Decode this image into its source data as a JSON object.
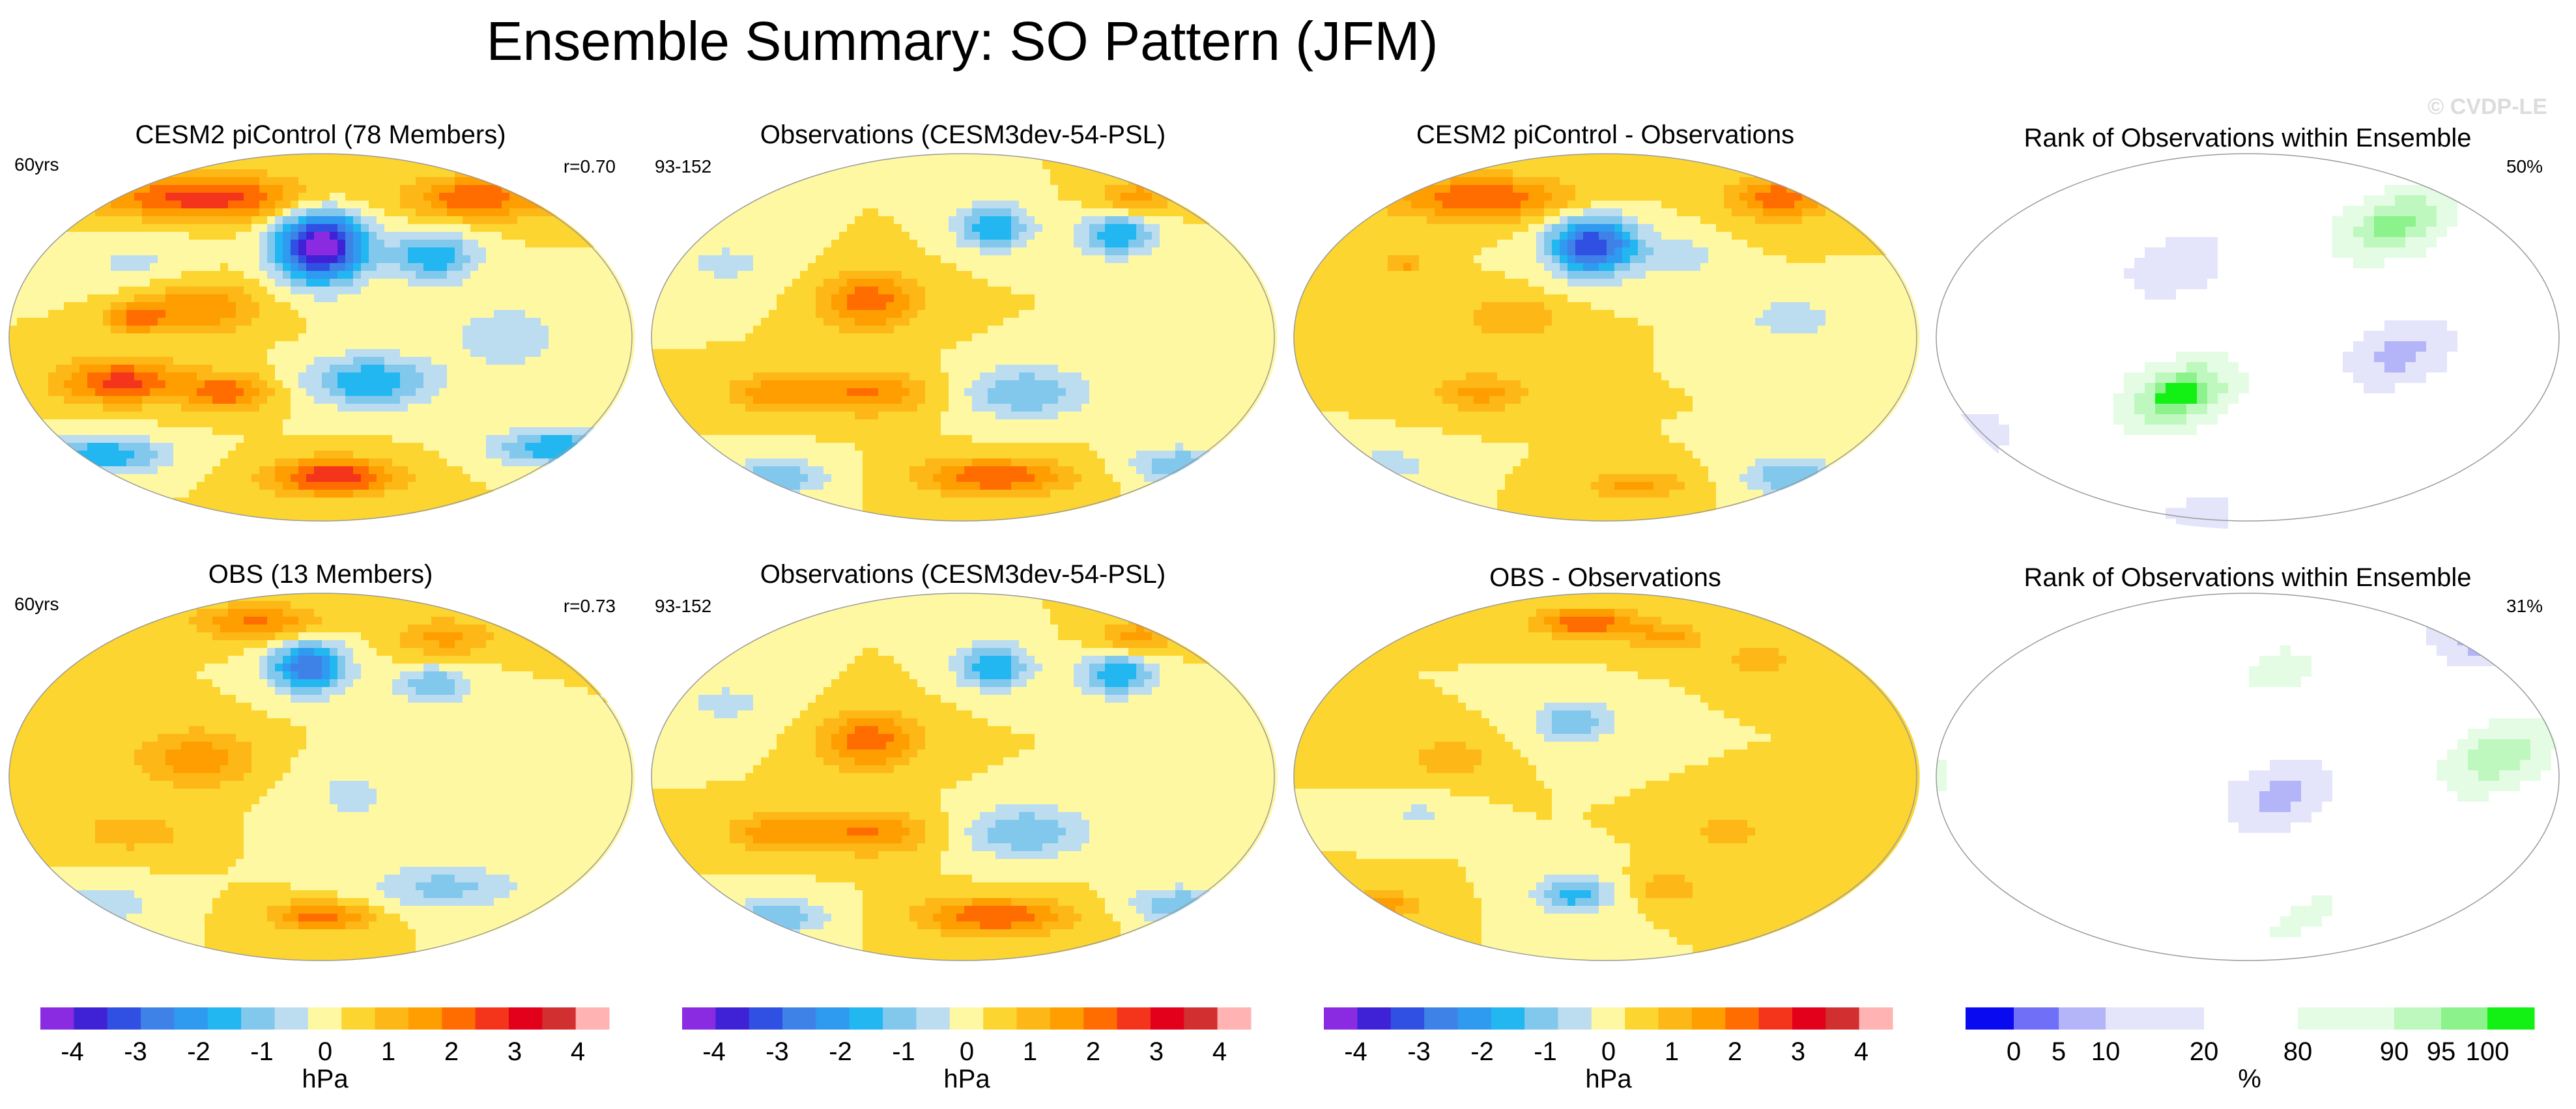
{
  "chart_data": {
    "type": "heatmap",
    "title": "Ensemble Summary: SO Pattern (JFM)",
    "copyright": "© CVDP-LE",
    "panels": [
      {
        "title": "CESM2 piControl (78 Members)",
        "left_label": "60yrs",
        "right_label": "r=0.70",
        "kind": "pattern",
        "features": [
          [
            0.5,
            0.25,
            -4.5,
            0.07,
            0.1
          ],
          [
            0.32,
            0.12,
            2.3,
            0.18,
            0.06
          ],
          [
            0.75,
            0.12,
            2.0,
            0.1,
            0.06
          ],
          [
            0.92,
            0.12,
            1.5,
            0.06,
            0.05
          ],
          [
            0.3,
            0.42,
            1.5,
            0.1,
            0.07
          ],
          [
            0.68,
            0.28,
            -1.9,
            0.07,
            0.07
          ],
          [
            0.58,
            0.62,
            -2.0,
            0.1,
            0.07
          ],
          [
            0.18,
            0.62,
            2.2,
            0.1,
            0.06
          ],
          [
            0.35,
            0.65,
            1.8,
            0.07,
            0.05
          ],
          [
            0.15,
            0.82,
            -2.0,
            0.1,
            0.05
          ],
          [
            0.52,
            0.88,
            2.5,
            0.1,
            0.05
          ],
          [
            0.88,
            0.8,
            -2.0,
            0.1,
            0.05
          ],
          [
            0.2,
            0.45,
            1.3,
            0.05,
            0.04
          ],
          [
            0.8,
            0.5,
            -0.8,
            0.1,
            0.1
          ],
          [
            0.2,
            0.3,
            -0.6,
            0.1,
            0.08
          ]
        ]
      },
      {
        "title": "Observations (CESM3dev-54-PSL)",
        "left_label": "93-152",
        "right_label": "",
        "kind": "pattern",
        "features": [
          [
            0.55,
            0.2,
            -2.0,
            0.06,
            0.06
          ],
          [
            0.75,
            0.22,
            -2.0,
            0.06,
            0.06
          ],
          [
            0.35,
            0.4,
            1.8,
            0.08,
            0.08
          ],
          [
            0.6,
            0.65,
            -1.5,
            0.1,
            0.07
          ],
          [
            0.35,
            0.65,
            1.5,
            0.1,
            0.06
          ],
          [
            0.2,
            0.65,
            1.3,
            0.08,
            0.05
          ],
          [
            0.2,
            0.88,
            -1.5,
            0.08,
            0.05
          ],
          [
            0.55,
            0.88,
            2.0,
            0.12,
            0.05
          ],
          [
            0.85,
            0.85,
            -1.5,
            0.08,
            0.05
          ],
          [
            0.78,
            0.12,
            1.3,
            0.06,
            0.05
          ],
          [
            0.12,
            0.3,
            -0.6,
            0.1,
            0.08
          ]
        ]
      },
      {
        "title": "CESM2 piControl - Observations",
        "left_label": "",
        "right_label": "",
        "kind": "pattern",
        "features": [
          [
            0.48,
            0.25,
            -3.5,
            0.07,
            0.08
          ],
          [
            0.3,
            0.12,
            2.0,
            0.15,
            0.06
          ],
          [
            0.78,
            0.12,
            1.8,
            0.08,
            0.06
          ],
          [
            0.18,
            0.3,
            1.2,
            0.03,
            0.03
          ],
          [
            0.35,
            0.45,
            1.0,
            0.08,
            0.06
          ],
          [
            0.3,
            0.65,
            1.2,
            0.08,
            0.05
          ],
          [
            0.8,
            0.45,
            -0.8,
            0.08,
            0.06
          ],
          [
            0.8,
            0.88,
            -1.5,
            0.08,
            0.05
          ],
          [
            0.55,
            0.9,
            1.2,
            0.08,
            0.04
          ],
          [
            0.62,
            0.28,
            -0.8,
            0.06,
            0.06
          ],
          [
            0.15,
            0.85,
            -0.8,
            0.08,
            0.05
          ]
        ]
      },
      {
        "title": "Rank of Observations within Ensemble",
        "left_label": "",
        "right_label": "50%",
        "kind": "rank",
        "seed": 3
      },
      {
        "title": "OBS (13 Members)",
        "left_label": "60yrs",
        "right_label": "r=0.73",
        "kind": "pattern",
        "features": [
          [
            0.48,
            0.2,
            -3.0,
            0.06,
            0.07
          ],
          [
            0.68,
            0.25,
            -1.5,
            0.06,
            0.05
          ],
          [
            0.4,
            0.08,
            1.6,
            0.1,
            0.05
          ],
          [
            0.7,
            0.12,
            1.2,
            0.08,
            0.05
          ],
          [
            0.3,
            0.45,
            1.3,
            0.1,
            0.08
          ],
          [
            0.5,
            0.88,
            1.8,
            0.08,
            0.04
          ],
          [
            0.7,
            0.8,
            -1.2,
            0.12,
            0.06
          ],
          [
            0.15,
            0.85,
            -1.0,
            0.08,
            0.05
          ],
          [
            0.55,
            0.55,
            -0.6,
            0.1,
            0.1
          ],
          [
            0.2,
            0.65,
            1.0,
            0.08,
            0.05
          ]
        ]
      },
      {
        "title": "Observations (CESM3dev-54-PSL)",
        "left_label": "93-152",
        "right_label": "",
        "kind": "pattern",
        "features": [
          [
            0.55,
            0.2,
            -2.0,
            0.06,
            0.06
          ],
          [
            0.75,
            0.22,
            -2.0,
            0.06,
            0.06
          ],
          [
            0.35,
            0.4,
            1.8,
            0.08,
            0.08
          ],
          [
            0.6,
            0.65,
            -1.5,
            0.1,
            0.07
          ],
          [
            0.35,
            0.65,
            1.5,
            0.1,
            0.06
          ],
          [
            0.2,
            0.65,
            1.3,
            0.08,
            0.05
          ],
          [
            0.2,
            0.88,
            -1.5,
            0.08,
            0.05
          ],
          [
            0.55,
            0.88,
            2.0,
            0.12,
            0.05
          ],
          [
            0.85,
            0.85,
            -1.5,
            0.08,
            0.05
          ],
          [
            0.78,
            0.12,
            1.3,
            0.06,
            0.05
          ],
          [
            0.12,
            0.3,
            -0.6,
            0.1,
            0.08
          ]
        ]
      },
      {
        "title": "OBS - Observations",
        "left_label": "",
        "right_label": "",
        "kind": "pattern",
        "features": [
          [
            0.45,
            0.35,
            -1.5,
            0.06,
            0.06
          ],
          [
            0.47,
            0.08,
            2.0,
            0.08,
            0.04
          ],
          [
            0.6,
            0.12,
            1.2,
            0.06,
            0.04
          ],
          [
            0.75,
            0.18,
            1.0,
            0.05,
            0.04
          ],
          [
            0.45,
            0.82,
            -1.8,
            0.06,
            0.05
          ],
          [
            0.15,
            0.85,
            1.2,
            0.06,
            0.04
          ],
          [
            0.6,
            0.8,
            1.0,
            0.05,
            0.04
          ],
          [
            0.25,
            0.45,
            1.0,
            0.06,
            0.05
          ],
          [
            0.7,
            0.65,
            0.8,
            0.06,
            0.05
          ],
          [
            0.2,
            0.6,
            -0.6,
            0.05,
            0.04
          ]
        ]
      },
      {
        "title": "Rank of Observations within Ensemble",
        "left_label": "",
        "right_label": "31%",
        "kind": "rank",
        "seed": 11
      }
    ],
    "colorbars": [
      {
        "label": "hPa",
        "tick_labels": [
          "-4",
          "-3",
          "-2",
          "-1",
          "0",
          "1",
          "2",
          "3",
          "4"
        ]
      },
      {
        "label": "hPa",
        "tick_labels": [
          "-4",
          "-3",
          "-2",
          "-1",
          "0",
          "1",
          "2",
          "3",
          "4"
        ]
      },
      {
        "label": "hPa",
        "tick_labels": [
          "-4",
          "-3",
          "-2",
          "-1",
          "0",
          "1",
          "2",
          "3",
          "4"
        ]
      },
      {
        "label": "%",
        "tick_labels": [
          "0",
          "5",
          "10",
          "20",
          "80",
          "90",
          "95",
          "100"
        ]
      }
    ],
    "diverging_colors": [
      "#8A2BE2",
      "#3F22D6",
      "#3050E3",
      "#3E82E8",
      "#2E9AF0",
      "#22B7F1",
      "#82C8EC",
      "#BCDDEF",
      "#FFF8A3",
      "#FCD530",
      "#FDB717",
      "#FF9E00",
      "#FF6D00",
      "#F5341C",
      "#E3001A",
      "#D23030",
      "#FFB3B3"
    ],
    "diverging_levels": [
      -4.5,
      -4,
      -3.5,
      -3,
      -2.5,
      -2,
      -1.5,
      -1,
      -0.5,
      0,
      0.5,
      1,
      1.5,
      2,
      2.5,
      3,
      3.5,
      4,
      4.5
    ],
    "rank_colors": [
      "#0A0AF0",
      "#6F6FF8",
      "#B4B4F8",
      "#E4E4FA",
      "#FFFFFF",
      "#E4FCE4",
      "#BEF8BE",
      "#8CF28C",
      "#13F013"
    ],
    "rank_levels": [
      0,
      5,
      10,
      20,
      80,
      90,
      95,
      100
    ]
  }
}
